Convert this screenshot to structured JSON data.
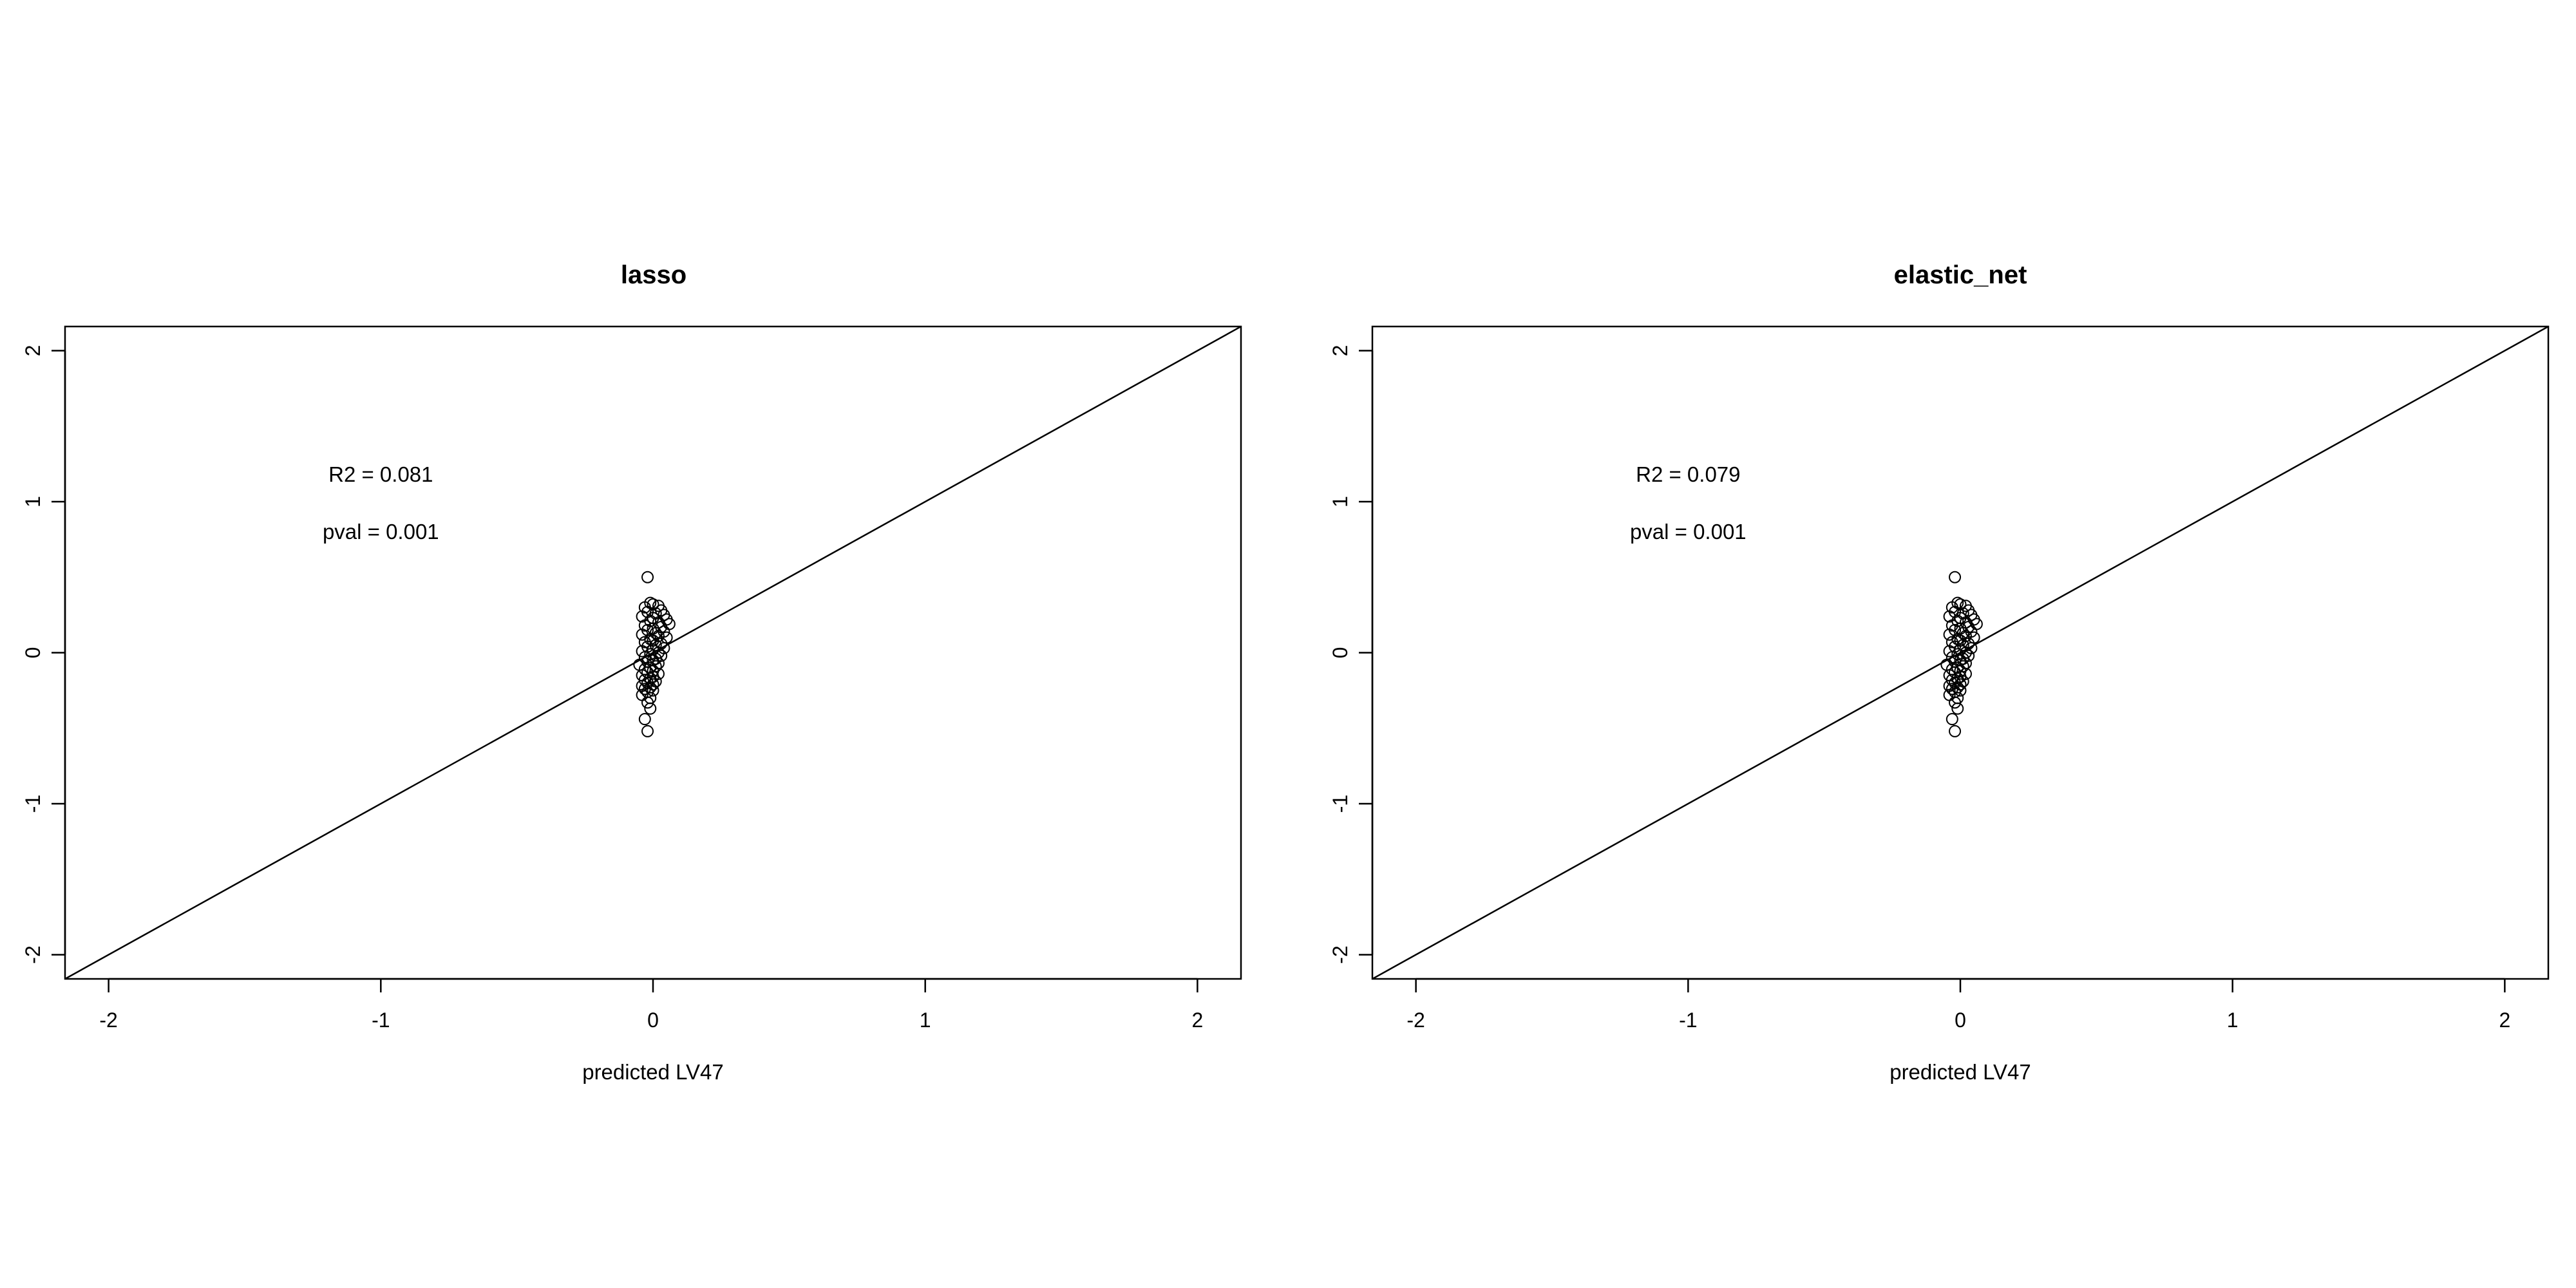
{
  "chart_data": [
    {
      "type": "scatter",
      "title": "lasso",
      "xlabel": "predicted LV47",
      "ylabel": "",
      "xlim": [
        -2.16,
        2.16
      ],
      "ylim": [
        -2.16,
        2.16
      ],
      "x_ticks": [
        -2,
        -1,
        0,
        1,
        2
      ],
      "y_ticks": [
        -2,
        -1,
        0,
        1,
        2
      ],
      "x_tick_labels": [
        "-2",
        "-1",
        "0",
        "1",
        "2"
      ],
      "y_tick_labels": [
        "-2",
        "-1",
        "0",
        "1",
        "2"
      ],
      "grid": false,
      "reference_line": {
        "slope": 1,
        "intercept": 0
      },
      "annotations": [
        {
          "text": "R2 = 0.081",
          "x": -1.0,
          "y": 1.18
        },
        {
          "text": "pval = 0.001",
          "x": -1.0,
          "y": 0.8
        }
      ],
      "points": [
        [
          -0.02,
          0.5
        ],
        [
          -0.01,
          0.33
        ],
        [
          0.0,
          0.32
        ],
        [
          0.02,
          0.31
        ],
        [
          -0.03,
          0.3
        ],
        [
          0.03,
          0.28
        ],
        [
          -0.02,
          0.27
        ],
        [
          0.01,
          0.26
        ],
        [
          0.04,
          0.25
        ],
        [
          -0.04,
          0.24
        ],
        [
          0.0,
          0.23
        ],
        [
          0.05,
          0.22
        ],
        [
          -0.01,
          0.21
        ],
        [
          0.02,
          0.2
        ],
        [
          0.06,
          0.19
        ],
        [
          -0.03,
          0.18
        ],
        [
          0.03,
          0.17
        ],
        [
          0.0,
          0.16
        ],
        [
          -0.02,
          0.15
        ],
        [
          0.04,
          0.14
        ],
        [
          0.01,
          0.13
        ],
        [
          -0.04,
          0.12
        ],
        [
          0.02,
          0.11
        ],
        [
          0.05,
          0.1
        ],
        [
          -0.01,
          0.09
        ],
        [
          0.0,
          0.08
        ],
        [
          -0.03,
          0.07
        ],
        [
          0.03,
          0.06
        ],
        [
          0.01,
          0.05
        ],
        [
          -0.02,
          0.04
        ],
        [
          0.04,
          0.03
        ],
        [
          0.0,
          0.02
        ],
        [
          -0.04,
          0.01
        ],
        [
          0.02,
          0.0
        ],
        [
          -0.01,
          -0.01
        ],
        [
          0.03,
          -0.02
        ],
        [
          -0.03,
          -0.03
        ],
        [
          0.01,
          -0.04
        ],
        [
          0.0,
          -0.05
        ],
        [
          -0.02,
          -0.06
        ],
        [
          0.02,
          -0.07
        ],
        [
          -0.05,
          -0.08
        ],
        [
          0.01,
          -0.09
        ],
        [
          -0.01,
          -0.1
        ],
        [
          -0.03,
          -0.11
        ],
        [
          0.0,
          -0.12
        ],
        [
          -0.02,
          -0.13
        ],
        [
          0.02,
          -0.14
        ],
        [
          -0.04,
          -0.15
        ],
        [
          0.0,
          -0.16
        ],
        [
          -0.01,
          -0.17
        ],
        [
          -0.03,
          -0.18
        ],
        [
          0.01,
          -0.19
        ],
        [
          -0.02,
          -0.2
        ],
        [
          0.0,
          -0.21
        ],
        [
          -0.04,
          -0.22
        ],
        [
          -0.01,
          -0.23
        ],
        [
          -0.03,
          -0.24
        ],
        [
          0.0,
          -0.25
        ],
        [
          -0.02,
          -0.26
        ],
        [
          -0.04,
          -0.28
        ],
        [
          -0.01,
          -0.3
        ],
        [
          -0.02,
          -0.33
        ],
        [
          -0.01,
          -0.37
        ],
        [
          -0.03,
          -0.44
        ],
        [
          -0.02,
          -0.52
        ]
      ]
    },
    {
      "type": "scatter",
      "title": "elastic_net",
      "xlabel": "predicted LV47",
      "ylabel": "",
      "xlim": [
        -2.16,
        2.16
      ],
      "ylim": [
        -2.16,
        2.16
      ],
      "x_ticks": [
        -2,
        -1,
        0,
        1,
        2
      ],
      "y_ticks": [
        -2,
        -1,
        0,
        1,
        2
      ],
      "x_tick_labels": [
        "-2",
        "-1",
        "0",
        "1",
        "2"
      ],
      "y_tick_labels": [
        "-2",
        "-1",
        "0",
        "1",
        "2"
      ],
      "grid": false,
      "reference_line": {
        "slope": 1,
        "intercept": 0
      },
      "annotations": [
        {
          "text": "R2 = 0.079",
          "x": -1.0,
          "y": 1.18
        },
        {
          "text": "pval = 0.001",
          "x": -1.0,
          "y": 0.8
        }
      ],
      "points": [
        [
          -0.02,
          0.5
        ],
        [
          -0.01,
          0.33
        ],
        [
          0.0,
          0.32
        ],
        [
          0.02,
          0.31
        ],
        [
          -0.03,
          0.3
        ],
        [
          0.03,
          0.28
        ],
        [
          -0.02,
          0.27
        ],
        [
          0.01,
          0.26
        ],
        [
          0.04,
          0.25
        ],
        [
          -0.04,
          0.24
        ],
        [
          0.0,
          0.23
        ],
        [
          0.05,
          0.22
        ],
        [
          -0.01,
          0.21
        ],
        [
          0.02,
          0.2
        ],
        [
          0.06,
          0.19
        ],
        [
          -0.03,
          0.18
        ],
        [
          0.03,
          0.17
        ],
        [
          0.0,
          0.16
        ],
        [
          -0.02,
          0.15
        ],
        [
          0.04,
          0.14
        ],
        [
          0.01,
          0.13
        ],
        [
          -0.04,
          0.12
        ],
        [
          0.02,
          0.11
        ],
        [
          0.05,
          0.1
        ],
        [
          -0.01,
          0.09
        ],
        [
          0.0,
          0.08
        ],
        [
          -0.03,
          0.07
        ],
        [
          0.03,
          0.06
        ],
        [
          0.01,
          0.05
        ],
        [
          -0.02,
          0.04
        ],
        [
          0.04,
          0.03
        ],
        [
          0.0,
          0.02
        ],
        [
          -0.04,
          0.01
        ],
        [
          0.02,
          0.0
        ],
        [
          -0.01,
          -0.01
        ],
        [
          0.03,
          -0.02
        ],
        [
          -0.03,
          -0.03
        ],
        [
          0.01,
          -0.04
        ],
        [
          0.0,
          -0.05
        ],
        [
          -0.02,
          -0.06
        ],
        [
          0.02,
          -0.07
        ],
        [
          -0.05,
          -0.08
        ],
        [
          0.01,
          -0.09
        ],
        [
          -0.01,
          -0.1
        ],
        [
          -0.03,
          -0.11
        ],
        [
          0.0,
          -0.12
        ],
        [
          -0.02,
          -0.13
        ],
        [
          0.02,
          -0.14
        ],
        [
          -0.04,
          -0.15
        ],
        [
          0.0,
          -0.16
        ],
        [
          -0.01,
          -0.17
        ],
        [
          -0.03,
          -0.18
        ],
        [
          0.01,
          -0.19
        ],
        [
          -0.02,
          -0.2
        ],
        [
          0.0,
          -0.21
        ],
        [
          -0.04,
          -0.22
        ],
        [
          -0.01,
          -0.23
        ],
        [
          -0.03,
          -0.24
        ],
        [
          0.0,
          -0.25
        ],
        [
          -0.02,
          -0.26
        ],
        [
          -0.04,
          -0.28
        ],
        [
          -0.01,
          -0.3
        ],
        [
          -0.02,
          -0.33
        ],
        [
          -0.01,
          -0.37
        ],
        [
          -0.03,
          -0.44
        ],
        [
          -0.02,
          -0.52
        ]
      ]
    }
  ]
}
